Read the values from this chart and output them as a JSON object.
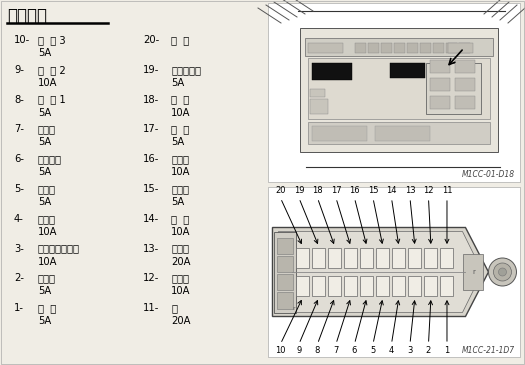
{
  "title": "保险丝盒",
  "bg_color": "#f0ede5",
  "text_color": "#222222",
  "left_items": [
    {
      "num": "10-",
      "name": "选  购 3",
      "amp": "5A"
    },
    {
      "num": "9-",
      "name": "选  购 2",
      "amp": "10A"
    },
    {
      "num": "8-",
      "name": "选  购 1",
      "amp": "5A"
    },
    {
      "num": "7-",
      "name": "空调机",
      "amp": "5A"
    },
    {
      "num": "6-",
      "name": "电源接通",
      "amp": "5A"
    },
    {
      "num": "5-",
      "name": "开关盒",
      "amp": "5A"
    },
    {
      "num": "4-",
      "name": "电磁阀",
      "amp": "10A"
    },
    {
      "num": "3-",
      "name": "发动机控制马达",
      "amp": "10A"
    },
    {
      "num": "2-",
      "name": "控制器",
      "amp": "5A"
    },
    {
      "num": "1-",
      "name": "后  备",
      "amp": "5A"
    }
  ],
  "right_items": [
    {
      "num": "20-",
      "name": "备  用",
      "amp": ""
    },
    {
      "num": "19-",
      "name": "辉光继电器",
      "amp": "5A"
    },
    {
      "num": "18-",
      "name": "补  助",
      "amp": "10A"
    },
    {
      "num": "17-",
      "name": "室  灯",
      "amp": "5A"
    },
    {
      "num": "16-",
      "name": "点烟器",
      "amp": "10A"
    },
    {
      "num": "15-",
      "name": "收音机",
      "amp": "5A"
    },
    {
      "num": "14-",
      "name": "喇  叭",
      "amp": "10A"
    },
    {
      "num": "13-",
      "name": "加热器",
      "amp": "20A"
    },
    {
      "num": "12-",
      "name": "刮水器",
      "amp": "10A"
    },
    {
      "num": "11-",
      "name": "灯",
      "amp": "20A"
    }
  ],
  "img1_label": "M1CC-01-D18",
  "img2_label": "M1CC-21-1D7",
  "fuse_top_nums": [
    "20",
    "19",
    "18",
    "17",
    "16",
    "15",
    "14",
    "13",
    "12",
    "11"
  ],
  "fuse_bot_nums": [
    "10",
    "9",
    "8",
    "7",
    "6",
    "5",
    "4",
    "3",
    "2",
    "1"
  ]
}
